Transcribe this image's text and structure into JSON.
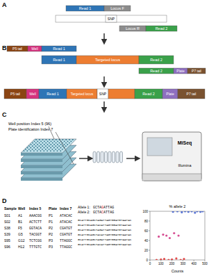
{
  "labels": {
    "a": "A",
    "b": "B",
    "c": "C",
    "d": "D"
  },
  "panel_a": {
    "read1": "Read 1",
    "locus_f": "Locus F",
    "snp": "SNP",
    "locus_r": "Locus R",
    "read2": "Read 2"
  },
  "panel_b": {
    "p5": "P5 tail",
    "well": "Well",
    "read1": "Read 1",
    "locus": "Targeted locus",
    "snp": "SNP",
    "read2": "Read 2",
    "plate": "Plate",
    "p7": "P7 tail"
  },
  "panel_c": {
    "well_index": "Well position Index 5 (96)",
    "plate_index": "Plate identification Index 7",
    "machine": "MiSeq",
    "brand": "Illumina"
  },
  "table": {
    "header": [
      "Sample",
      "Well",
      "Index 5",
      "Plate",
      "Index 7"
    ],
    "rows": [
      [
        "S01",
        "A1",
        "AAACGG",
        "P1",
        "ATACAC"
      ],
      [
        "S02",
        "B1",
        "ACTCTT",
        "P1",
        "ATACAC"
      ],
      [
        "S38",
        "F5",
        "GGTACA",
        "P2",
        "CGATGT"
      ],
      [
        "S39",
        "G5",
        "TACGGT",
        "P2",
        "CGATGT"
      ],
      [
        "S95",
        "G12",
        "TCTCGG",
        "P3",
        "TTAGGC"
      ],
      [
        "S96",
        "H12",
        "TTTGTC",
        "P3",
        "TTAGGC"
      ]
    ]
  },
  "alleles": [
    {
      "label": "Allele 1:",
      "seq": "GCTAGATTAG"
    },
    {
      "label": "Allele 2:",
      "seq": "GCTACATTAG"
    }
  ],
  "reads": [
    "GCATTGCAGCTAGATTAGTGGATGTAATAC",
    "GCATTGCAGCTACATTAGTGGATGTAATAC",
    "GCATTGCAGCTAGATTAGTGGATGTAATAC",
    "GCATTGCAGCTACATTAGTGGATGTAATAC",
    "GCATTGCAGCTAGATTAGTGGATGTAATAC",
    "GCATTGCAGCTACATTAGTGGATGTAATAC"
  ],
  "chart_data": {
    "type": "scatter",
    "title": "% allele 2",
    "x_label": "Counts",
    "xlim": [
      0,
      500
    ],
    "xticks": [
      0,
      100,
      200,
      300,
      400,
      500
    ],
    "ylim": [
      0,
      100
    ],
    "yticks": [
      0,
      20,
      40,
      60,
      80,
      100
    ],
    "series": [
      {
        "color": "#3355cc",
        "x": [
          210,
          250,
          290,
          320,
          350,
          380,
          410,
          430,
          460,
          480
        ],
        "values": [
          99,
          100,
          98,
          100,
          99,
          100,
          97,
          100,
          99,
          100
        ]
      },
      {
        "color": "#cc2277",
        "x": [
          80,
          120,
          150,
          180,
          220,
          260
        ],
        "values": [
          48,
          52,
          50,
          45,
          55,
          50
        ]
      },
      {
        "color": "#dd2222",
        "x": [
          60,
          100,
          130,
          170,
          200,
          240,
          280,
          310
        ],
        "values": [
          0,
          1,
          2,
          0,
          1,
          3,
          0,
          2
        ]
      }
    ]
  }
}
